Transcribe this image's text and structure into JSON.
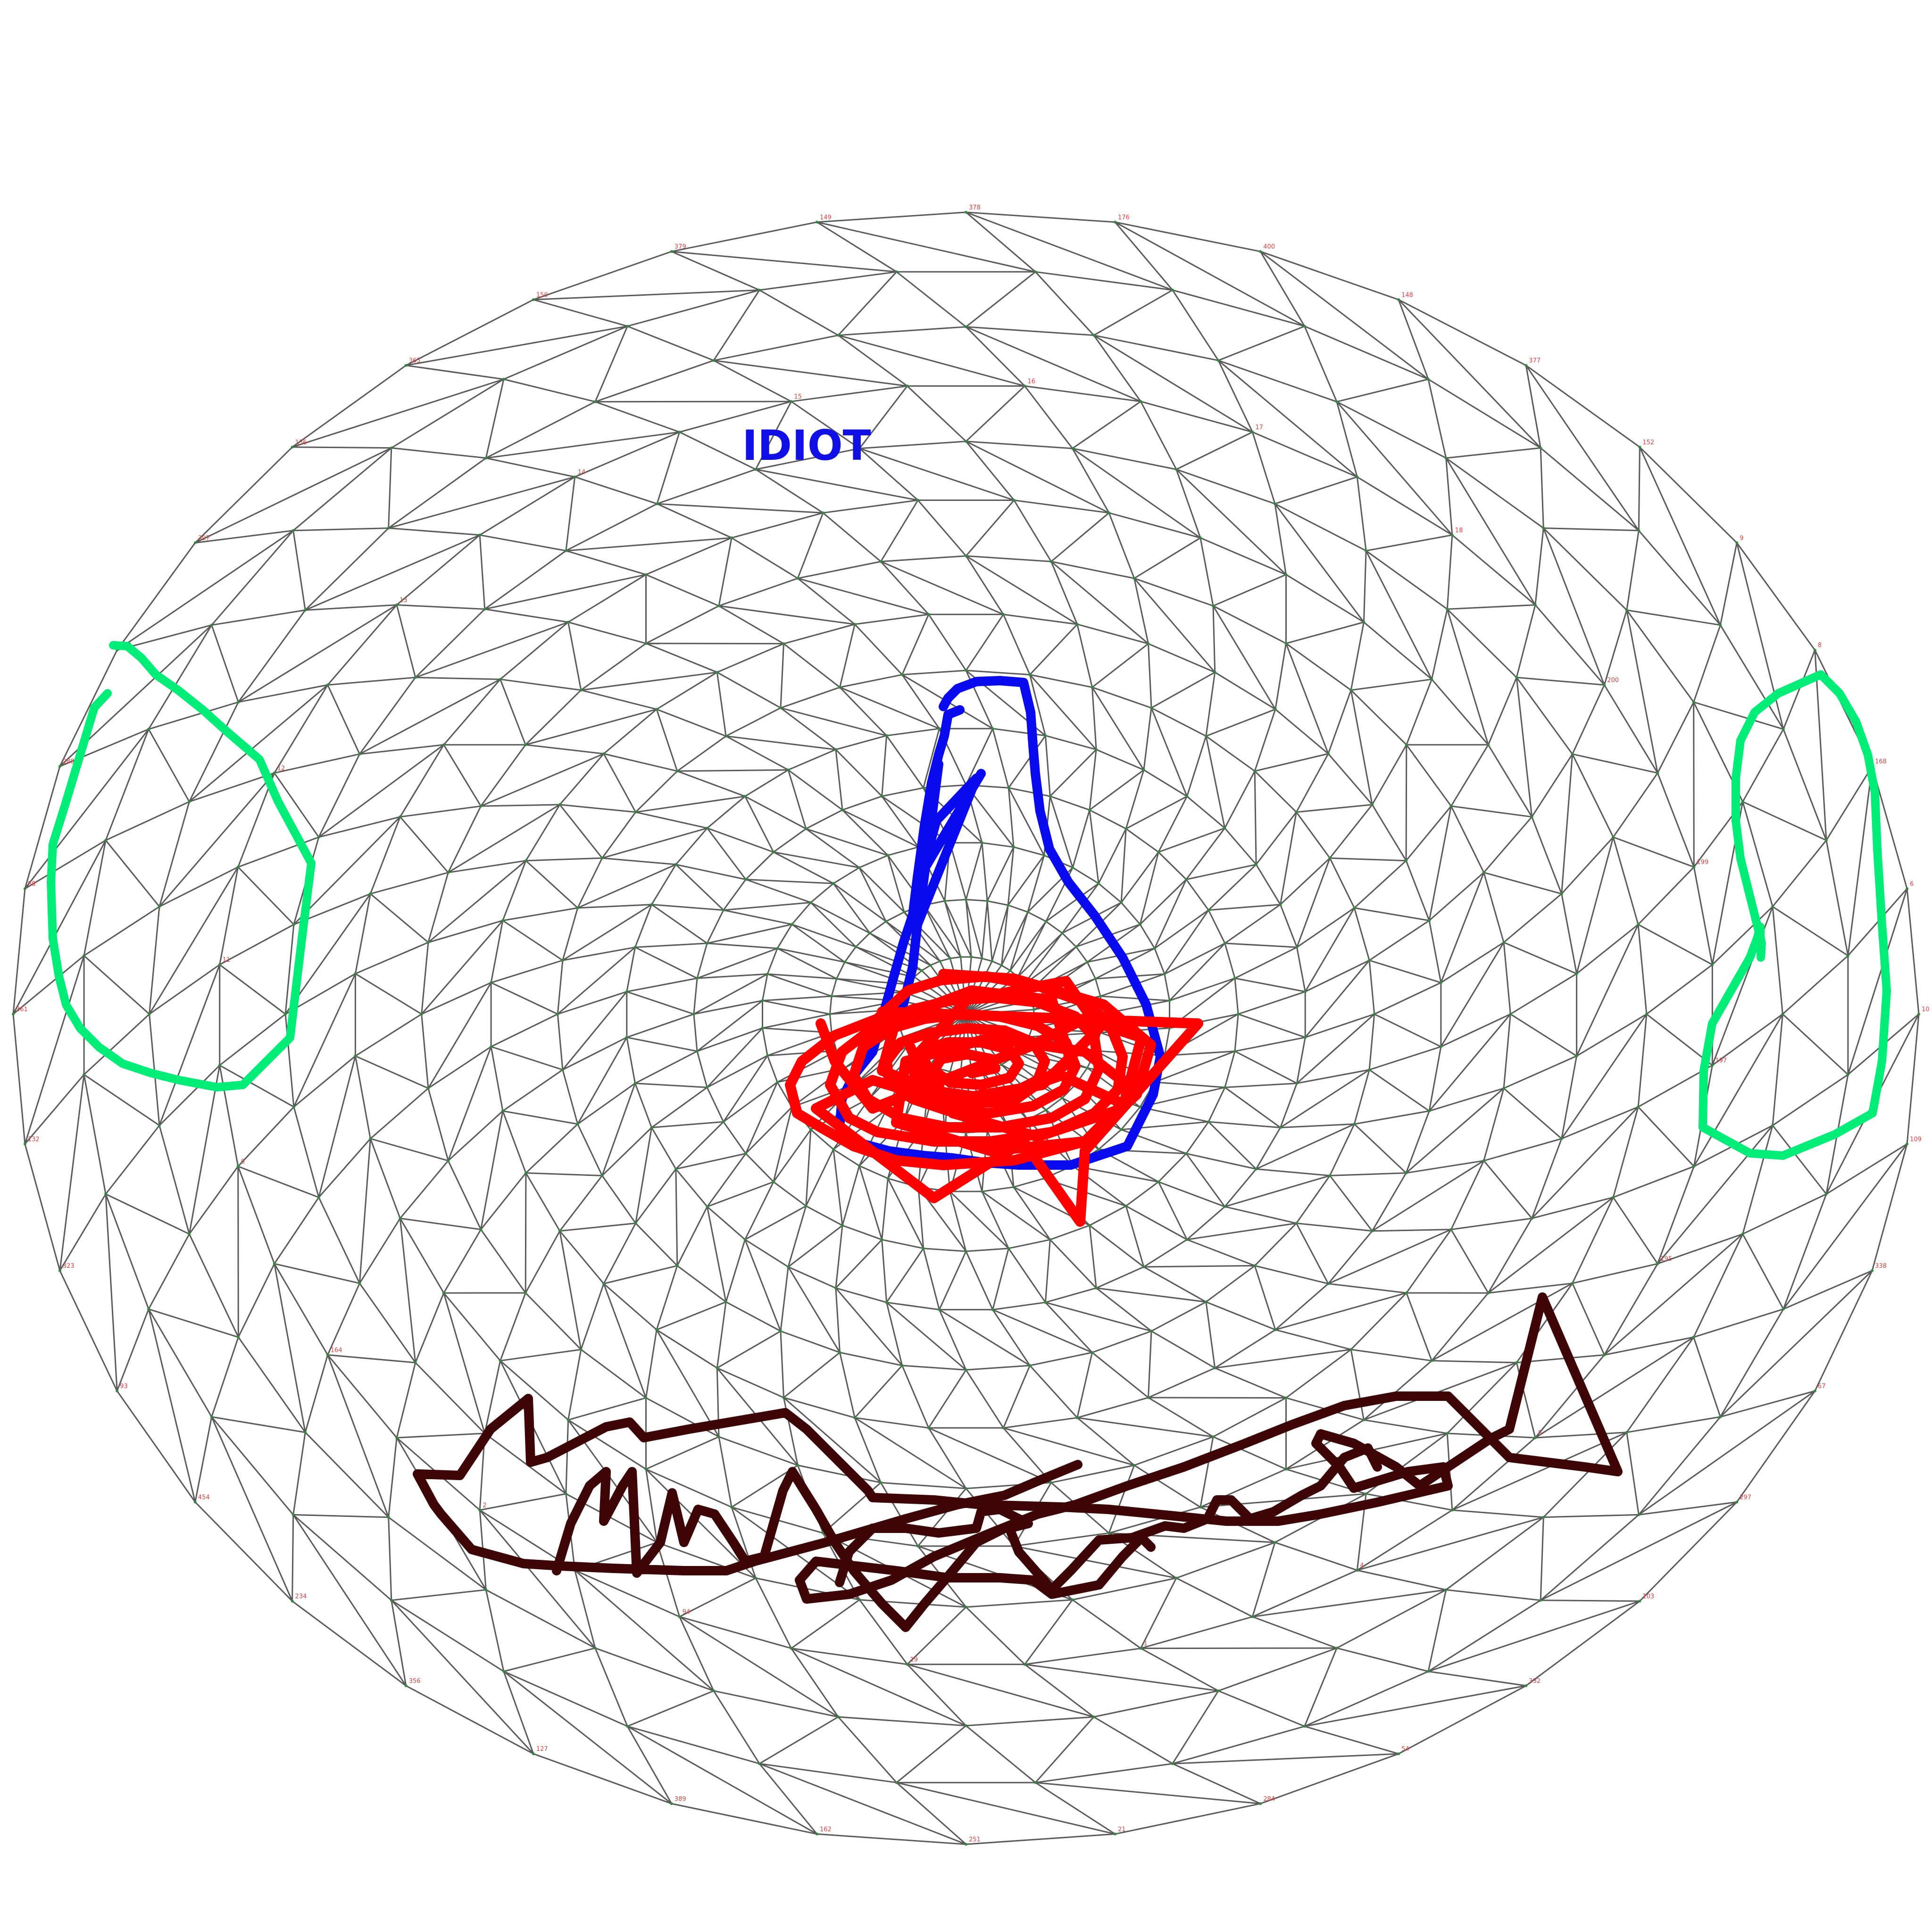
{
  "annotation": {
    "text": "IDIOT",
    "color": "#1010e6"
  },
  "colors": {
    "mesh_line": "#5a5a5a",
    "vertex_dot": "#2e8b3a",
    "vertex_label": "#e04040",
    "nose_outline": "#0a0aee",
    "nose_scribble": "#ff0000",
    "cheek_outline": "#00ee77",
    "mouth_scribble": "#3d0505"
  },
  "mesh": {
    "vertex_labels": [
      "10",
      "109",
      "338",
      "67",
      "297",
      "103",
      "332",
      "54",
      "284",
      "21",
      "251",
      "162",
      "389",
      "127",
      "356",
      "234",
      "454",
      "93",
      "323",
      "132",
      "361",
      "58",
      "288",
      "172",
      "397",
      "136",
      "365",
      "150",
      "379",
      "149",
      "378",
      "176",
      "400",
      "148",
      "377",
      "152",
      "9",
      "8",
      "168",
      "6",
      "197",
      "195",
      "5",
      "4",
      "1",
      "19",
      "94",
      "2",
      "164",
      "0",
      "11",
      "12",
      "13",
      "14",
      "15",
      "16",
      "17",
      "18",
      "200",
      "199",
      "175"
    ]
  }
}
